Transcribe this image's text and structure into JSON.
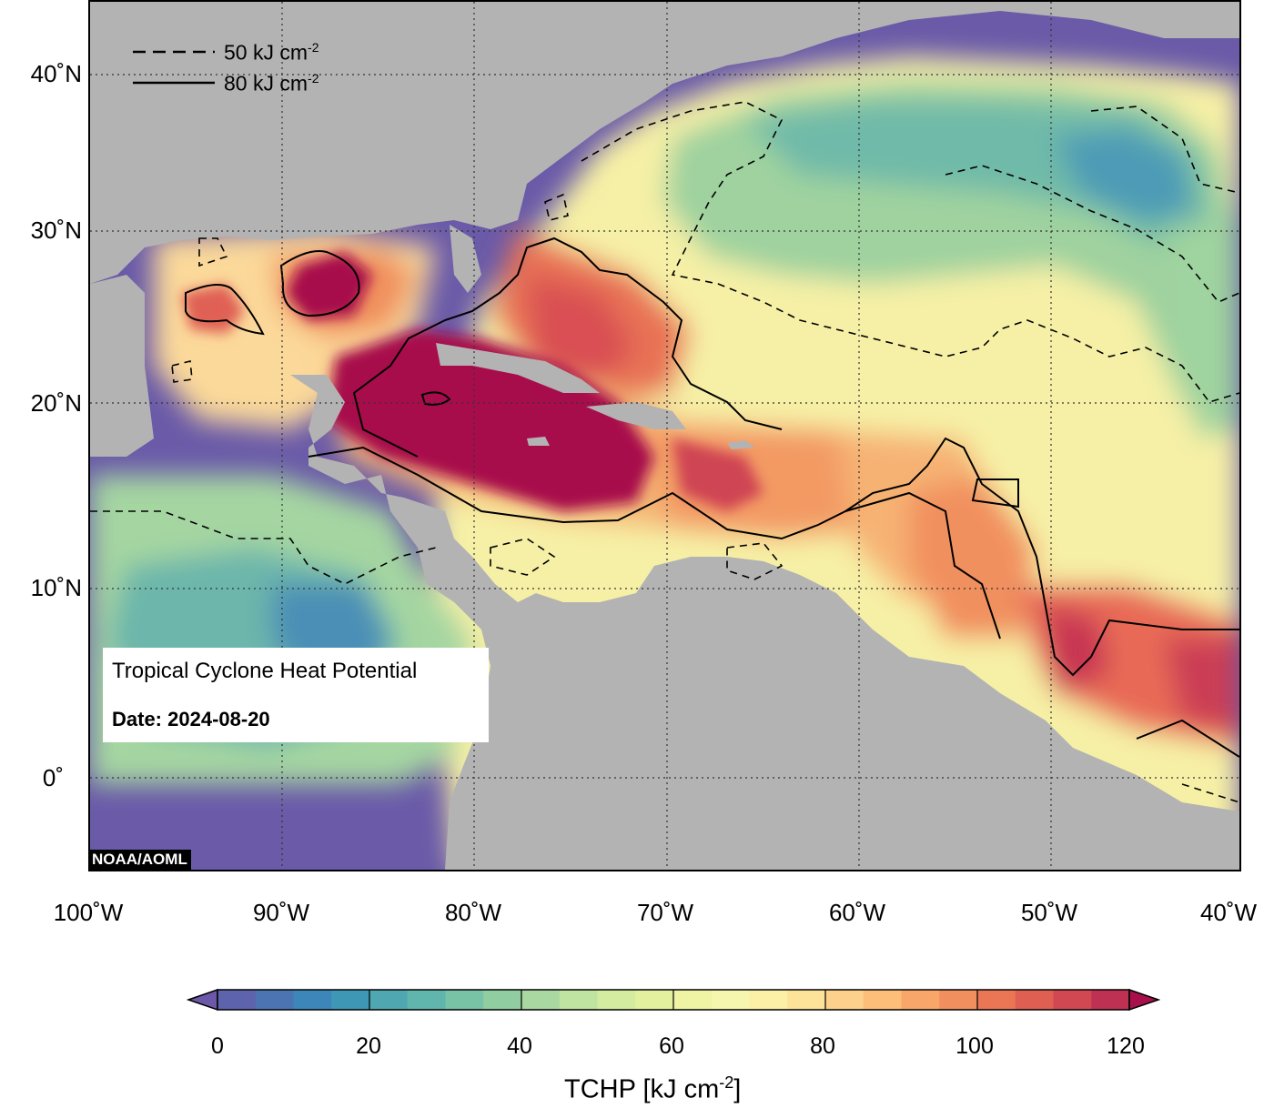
{
  "map": {
    "title": "Tropical Cyclone Heat Potential",
    "date_label": "Date: 2024-08-20",
    "credit": "NOAA/AOML",
    "legend": [
      {
        "line_style": "dashed",
        "label": "50 kJ cm",
        "sup": "-2"
      },
      {
        "line_style": "solid",
        "label": "80 kJ cm",
        "sup": "-2"
      }
    ],
    "lat_labels": [
      {
        "text": "40˚N",
        "value": 40
      },
      {
        "text": "30˚N",
        "value": 30
      },
      {
        "text": "20˚N",
        "value": 20
      },
      {
        "text": "10˚N",
        "value": 10
      },
      {
        "text": "0˚",
        "value": 0
      }
    ],
    "lon_labels": [
      {
        "text": "100˚W",
        "value": -100
      },
      {
        "text": "90˚W",
        "value": -90
      },
      {
        "text": "80˚W",
        "value": -80
      },
      {
        "text": "70˚W",
        "value": -70
      },
      {
        "text": "60˚W",
        "value": -60
      },
      {
        "text": "50˚W",
        "value": -50
      },
      {
        "text": "40˚W",
        "value": -40
      }
    ],
    "extent": {
      "lon_min": -100,
      "lon_max": -40,
      "lat_min": -5,
      "lat_max": 45
    },
    "colors": {
      "land": "#b3b3b3",
      "deep_low": "#6a5aa8",
      "hot": "#a8104c"
    }
  },
  "colorbar": {
    "title": "TCHP [kJ cm",
    "title_sup": "-2",
    "title_end": "]",
    "ticks": [
      "0",
      "20",
      "40",
      "60",
      "80",
      "100",
      "120"
    ],
    "range": [
      0,
      120
    ],
    "colors": [
      "#6c58a8",
      "#5d64ad",
      "#4c74b3",
      "#3d86b9",
      "#3f97b6",
      "#4fa8b1",
      "#60b5ad",
      "#78c2a6",
      "#90cea2",
      "#a9d9a1",
      "#bfe3a0",
      "#d3ec9f",
      "#e3f19f",
      "#eef4a4",
      "#f6f6ae",
      "#fbf0a6",
      "#fde29a",
      "#fdd18b",
      "#fcbe79",
      "#f8a66a",
      "#f28f5e",
      "#ea7656",
      "#df5f53",
      "#d14853",
      "#bf3153",
      "#a8104c"
    ]
  }
}
